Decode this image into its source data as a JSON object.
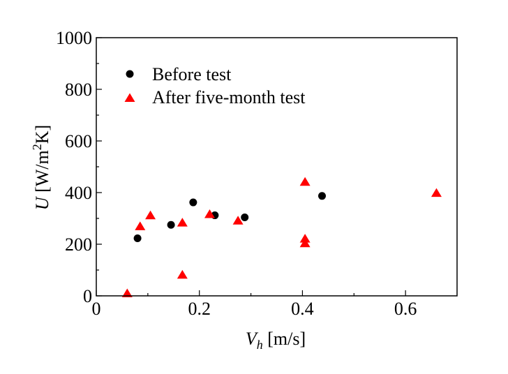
{
  "chart_data": {
    "type": "scatter",
    "title": "",
    "xlabel": {
      "symbol": "V",
      "sub": "h",
      "unit": " [m/s]"
    },
    "ylabel": {
      "symbol": "U",
      "unit_pre": " [W/m",
      "sup": "2",
      "unit_post": "K]"
    },
    "xlim": [
      0,
      0.7
    ],
    "ylim": [
      0,
      1000
    ],
    "xticks": [
      0,
      0.2,
      0.4,
      0.6
    ],
    "xtick_labels": [
      "0",
      "0.2",
      "0.4",
      "0.6"
    ],
    "yticks": [
      0,
      200,
      400,
      600,
      800,
      1000
    ],
    "ytick_labels": [
      "0",
      "200",
      "400",
      "600",
      "800",
      "1000"
    ],
    "grid": false,
    "legend_position": "top-left",
    "series": [
      {
        "name": "Before test",
        "marker": "circle",
        "color": "#000000",
        "points": [
          {
            "x": 0.08,
            "y": 223
          },
          {
            "x": 0.145,
            "y": 275
          },
          {
            "x": 0.188,
            "y": 362
          },
          {
            "x": 0.23,
            "y": 312
          },
          {
            "x": 0.288,
            "y": 304
          },
          {
            "x": 0.438,
            "y": 387
          }
        ]
      },
      {
        "name": "After five-month test",
        "marker": "triangle",
        "color": "#ff0000",
        "points": [
          {
            "x": 0.06,
            "y": 8
          },
          {
            "x": 0.085,
            "y": 268
          },
          {
            "x": 0.105,
            "y": 310
          },
          {
            "x": 0.167,
            "y": 80
          },
          {
            "x": 0.167,
            "y": 282
          },
          {
            "x": 0.22,
            "y": 315
          },
          {
            "x": 0.275,
            "y": 290
          },
          {
            "x": 0.405,
            "y": 440
          },
          {
            "x": 0.405,
            "y": 220
          },
          {
            "x": 0.405,
            "y": 202
          },
          {
            "x": 0.66,
            "y": 397
          }
        ]
      }
    ]
  }
}
